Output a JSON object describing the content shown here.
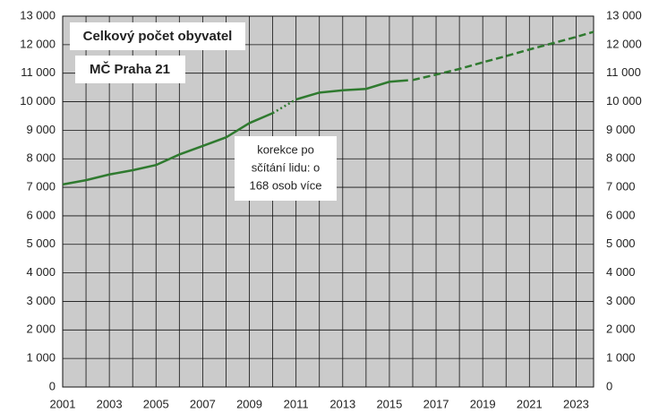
{
  "chart_data": {
    "type": "line",
    "title": "Celkový počet obyvatel",
    "subtitle": "MČ Praha 21",
    "annotation": [
      "korekce po",
      "sčítání lidu: o",
      "168 osob více"
    ],
    "series": [
      {
        "color": "#2f7a2f",
        "dash": "solid",
        "x": [
          2001,
          2002,
          2003,
          2004,
          2005,
          2006,
          2007,
          2008,
          2009,
          2010
        ],
        "values": [
          7100,
          7250,
          7450,
          7600,
          7780,
          8150,
          8450,
          8750,
          9250,
          9600
        ]
      },
      {
        "color": "#2f7a2f",
        "dash": "dotted",
        "x": [
          2010,
          2011
        ],
        "values": [
          9600,
          10080
        ]
      },
      {
        "color": "#2f7a2f",
        "dash": "solid",
        "x": [
          2011,
          2012,
          2013,
          2014,
          2015,
          2015.8
        ],
        "values": [
          10080,
          10320,
          10400,
          10450,
          10700,
          10750
        ]
      },
      {
        "color": "#2f7a2f",
        "dash": "dashed",
        "x": [
          2016,
          2017,
          2018,
          2019,
          2020,
          2021,
          2022,
          2023,
          2023.75
        ],
        "values": [
          10760,
          10950,
          11150,
          11380,
          11600,
          11830,
          12050,
          12270,
          12450
        ]
      }
    ],
    "xlim": [
      2001,
      2023.75
    ],
    "xticks": [
      2001,
      2003,
      2005,
      2007,
      2009,
      2011,
      2013,
      2015,
      2017,
      2019,
      2021,
      2023
    ],
    "xminorticks": [
      2002,
      2004,
      2006,
      2008,
      2010,
      2012,
      2014,
      2016,
      2018,
      2020,
      2022
    ],
    "ylim": [
      0,
      13000
    ],
    "yticks": [
      0,
      {
        "value": 1000,
        "label": "1 000"
      },
      {
        "value": 2000,
        "label": "2 000"
      },
      {
        "value": 3000,
        "label": "3 000"
      },
      {
        "value": 4000,
        "label": "4 000"
      },
      {
        "value": 5000,
        "label": "5 000"
      },
      {
        "value": 6000,
        "label": "6 000"
      },
      {
        "value": 7000,
        "label": "7 000"
      },
      {
        "value": 8000,
        "label": "8 000"
      },
      {
        "value": 9000,
        "label": "9 000"
      },
      {
        "value": 10000,
        "label": "10 000"
      },
      {
        "value": 11000,
        "label": "11 000"
      },
      {
        "value": 12000,
        "label": "12 000"
      },
      {
        "value": 13000,
        "label": "13 000"
      }
    ],
    "y2lim": [
      0,
      13000
    ],
    "y2ticks": [
      0,
      {
        "value": 1000,
        "label": "1 000"
      },
      {
        "value": 2000,
        "label": "2 000"
      },
      {
        "value": 3000,
        "label": "3 000"
      },
      {
        "value": 4000,
        "label": "4 000"
      },
      {
        "value": 5000,
        "label": "5 000"
      },
      {
        "value": 6000,
        "label": "6 000"
      },
      {
        "value": 7000,
        "label": "7 000"
      },
      {
        "value": 8000,
        "label": "8 000"
      },
      {
        "value": 9000,
        "label": "9 000"
      },
      {
        "value": 10000,
        "label": "10 000"
      },
      {
        "value": 11000,
        "label": "11 000"
      },
      {
        "value": 12000,
        "label": "12 000"
      },
      {
        "value": 13000,
        "label": "13 000"
      }
    ],
    "grid": true,
    "background": "#cbcbcb"
  }
}
